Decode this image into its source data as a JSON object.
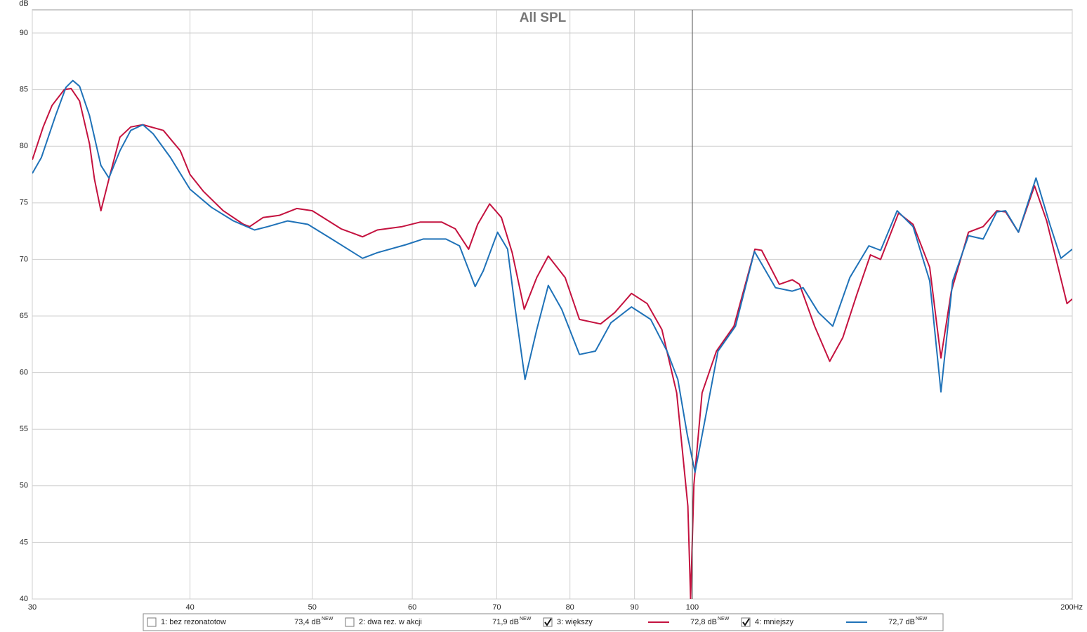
{
  "chart_data": {
    "type": "line",
    "title": "All SPL",
    "y_label": "dB",
    "log_x": true,
    "grid": true,
    "xlim": [
      30,
      200
    ],
    "ylim": [
      40,
      92.05
    ],
    "xticks": [
      30,
      40,
      50,
      60,
      70,
      80,
      90,
      100,
      {
        "value": 200,
        "label": "200Hz"
      }
    ],
    "yticks": [
      40,
      45,
      50,
      55,
      60,
      65,
      70,
      75,
      80,
      85,
      90
    ],
    "series": [
      {
        "name": "1: bez rezonatotow",
        "color": "#5b2ea6",
        "checked": false,
        "reading": "73,4 dB",
        "badge": "NEW"
      },
      {
        "name": "2: dwa rez. w akcji",
        "color": "#1f8a8a",
        "checked": false,
        "reading": "71,9 dB",
        "badge": "NEW"
      },
      {
        "name": "3: większy",
        "color": "#c4123f",
        "checked": true,
        "reading": "72,8 dB",
        "badge": "NEW",
        "x": [
          30,
          30.6,
          31.1,
          31.8,
          32.2,
          32.7,
          33.3,
          33.6,
          34,
          34.5,
          35.2,
          35.9,
          36.7,
          38.1,
          39.3,
          40,
          41,
          42.5,
          44.1,
          44.6,
          45.7,
          47.1,
          48.6,
          50,
          52.7,
          54.8,
          56.3,
          58.9,
          60.9,
          63.3,
          64.9,
          66.5,
          67.6,
          69.1,
          70.6,
          72,
          73.6,
          75.3,
          76.9,
          79.3,
          81.4,
          84.6,
          86.8,
          89.5,
          92.1,
          94.6,
          97.2,
          99.2,
          99.7,
          100.3,
          101.8,
          104.5,
          107.9,
          112.1,
          113.5,
          117.2,
          120,
          121.6,
          125,
          128.5,
          131.6,
          135,
          138.4,
          141,
          145.7,
          149.6,
          154.2,
          157.4,
          160.4,
          165.5,
          170,
          174.3,
          177.1,
          181.3,
          186.7,
          190.9,
          198.1,
          200
        ],
        "values": [
          78.8,
          81.7,
          83.6,
          85,
          85.1,
          84,
          80.2,
          77.1,
          74.3,
          77.1,
          80.8,
          81.7,
          81.9,
          81.4,
          79.6,
          77.5,
          76,
          74.3,
          73.1,
          72.9,
          73.7,
          73.9,
          74.5,
          74.3,
          72.7,
          72,
          72.6,
          72.9,
          73.3,
          73.3,
          72.7,
          70.9,
          73.1,
          74.9,
          73.7,
          70.6,
          65.6,
          68.4,
          70.3,
          68.4,
          64.7,
          64.3,
          65.3,
          67,
          66.1,
          63.8,
          58.2,
          48.2,
          40,
          50.1,
          58.2,
          61.9,
          64.1,
          70.9,
          70.8,
          67.8,
          68.2,
          67.8,
          64.1,
          61,
          63.1,
          66.9,
          70.4,
          70,
          74.1,
          73.1,
          69.3,
          61.3,
          67.2,
          72.4,
          72.9,
          74.3,
          74.2,
          72.4,
          76.5,
          73.4,
          66.1,
          66.5
        ]
      },
      {
        "name": "4: mniejszy",
        "color": "#1f72b8",
        "checked": true,
        "reading": "72,7 dB",
        "badge": "NEW",
        "x": [
          30,
          30.5,
          31.3,
          31.9,
          32.3,
          32.7,
          33.3,
          34,
          34.5,
          35.2,
          35.9,
          36.7,
          37.4,
          38.6,
          40,
          41.6,
          43.3,
          45,
          46.1,
          47.8,
          49.6,
          51.8,
          54.8,
          56.3,
          59.3,
          61.2,
          63.8,
          65.4,
          67.3,
          68.3,
          70.1,
          71.4,
          72.4,
          73.7,
          75.3,
          76.9,
          78.8,
          81.4,
          83.8,
          86.2,
          89.5,
          92.7,
          95.5,
          97.4,
          99.1,
          100.5,
          102.3,
          104.8,
          108.2,
          112,
          116.4,
          120,
          122.4,
          125.9,
          129.2,
          133.3,
          138,
          141,
          145.3,
          149.6,
          154.2,
          157.4,
          160.8,
          165.5,
          170,
          174.3,
          177.1,
          181.3,
          187.2,
          192,
          195.9,
          200
        ],
        "values": [
          77.6,
          79,
          82.7,
          85.2,
          85.8,
          85.3,
          82.7,
          78.3,
          77.2,
          79.6,
          81.4,
          81.9,
          81.1,
          79,
          76.2,
          74.6,
          73.4,
          72.6,
          72.9,
          73.4,
          73.1,
          71.8,
          70.1,
          70.6,
          71.3,
          71.8,
          71.8,
          71.2,
          67.6,
          69,
          72.4,
          70.9,
          65.6,
          59.4,
          63.8,
          67.7,
          65.6,
          61.6,
          61.9,
          64.4,
          65.8,
          64.7,
          61.9,
          59.4,
          54.5,
          51.2,
          55.7,
          61.9,
          64.1,
          70.7,
          67.5,
          67.2,
          67.5,
          65.3,
          64.1,
          68.4,
          71.2,
          70.8,
          74.3,
          72.9,
          68.1,
          58.3,
          68.1,
          72.1,
          71.8,
          74.2,
          74.3,
          72.4,
          77.2,
          73.1,
          70.1,
          70.9
        ]
      }
    ]
  }
}
